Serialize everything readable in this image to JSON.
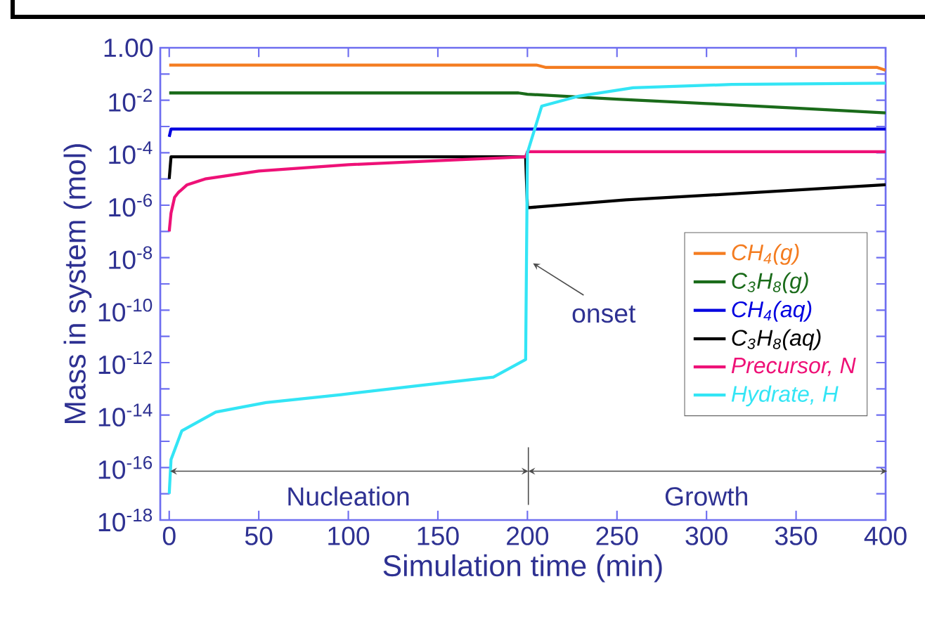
{
  "chart_data": {
    "type": "line",
    "xlabel": "Simulation time (min)",
    "ylabel": "Mass in system (mol)",
    "log": "y",
    "legend": "right",
    "marker": "none",
    "xlim": [
      -5,
      400
    ],
    "xticks": [
      0,
      50,
      100,
      150,
      200,
      250,
      300,
      350,
      400
    ],
    "ylim": [
      1e-18,
      1
    ],
    "yticks": [
      {
        "value": 1,
        "label": "1.00"
      },
      {
        "value": 0.1,
        "label": null
      },
      {
        "value": 0.01,
        "label": "10$^{-2}$"
      },
      {
        "value": 0.001,
        "label": null
      },
      {
        "value": 0.0001,
        "label": "10$^{-4}$"
      },
      {
        "value": 1e-05,
        "label": null
      },
      {
        "value": 1e-06,
        "label": "10$^{-6}$"
      },
      {
        "value": 1e-07,
        "label": null
      },
      {
        "value": 1e-08,
        "label": "10$^{-8}$"
      },
      {
        "value": 1e-09,
        "label": null
      },
      {
        "value": 1e-10,
        "label": "10$^{-10}$"
      },
      {
        "value": 1e-11,
        "label": null
      },
      {
        "value": 1e-12,
        "label": "10$^{-12}$"
      },
      {
        "value": 1e-13,
        "label": null
      },
      {
        "value": 1e-14,
        "label": "10$^{-14}$"
      },
      {
        "value": 1e-15,
        "label": null
      },
      {
        "value": 1e-16,
        "label": "10$^{-16}$"
      },
      {
        "value": 1e-17,
        "label": null
      },
      {
        "value": 1e-18,
        "label": "10$^{-18}$"
      }
    ],
    "series": [
      {
        "name": "CH$_{4}$(g)",
        "color": "#f47c20",
        "x": [
          0,
          205,
          210,
          395,
          400
        ],
        "values": [
          0.22,
          0.22,
          0.18,
          0.18,
          0.14
        ]
      },
      {
        "name": "C$_{3}$H$_{8}$(g)",
        "color": "#1a6b1a",
        "x": [
          0,
          195,
          200,
          250,
          300,
          350,
          400
        ],
        "values": [
          0.019,
          0.019,
          0.017,
          0.011,
          0.0075,
          0.005,
          0.0033
        ]
      },
      {
        "name": "CH$_{4}$(aq)",
        "color": "#0000e0",
        "x": [
          0,
          1,
          400
        ],
        "values": [
          0.0004,
          0.0008,
          0.0008
        ]
      },
      {
        "name": "C$_{3}$H$_{8}$(aq)",
        "color": "#000000",
        "x": [
          0,
          1,
          199,
          200,
          255,
          314,
          400
        ],
        "values": [
          1e-05,
          7e-05,
          7e-05,
          8e-07,
          1.6e-06,
          2.7e-06,
          6e-06
        ]
      },
      {
        "name": "Precursor, N",
        "color": "#ee1177",
        "x": [
          0,
          1,
          3,
          5,
          10,
          20,
          50,
          100,
          150,
          199,
          200,
          400
        ],
        "values": [
          1e-07,
          5e-07,
          2e-06,
          3e-06,
          6e-06,
          1e-05,
          2e-05,
          3.5e-05,
          5e-05,
          7e-05,
          0.00011,
          0.00011
        ]
      },
      {
        "name": "Hydrate, H",
        "color": "#33e5f5",
        "x": [
          0,
          1,
          7,
          26,
          54,
          96,
          138,
          181,
          199,
          200,
          208,
          228,
          259,
          314,
          400
        ],
        "values": [
          1e-17,
          2e-16,
          2.5e-15,
          1.3e-14,
          3e-14,
          6e-14,
          1.3e-13,
          2.8e-13,
          1.3e-12,
          0.0001,
          0.006,
          0.014,
          0.03,
          0.04,
          0.045
        ]
      }
    ],
    "annotations": [
      {
        "text": "onset",
        "x": 200,
        "y": 1e-08
      },
      "Nucleation",
      "Growth"
    ]
  }
}
